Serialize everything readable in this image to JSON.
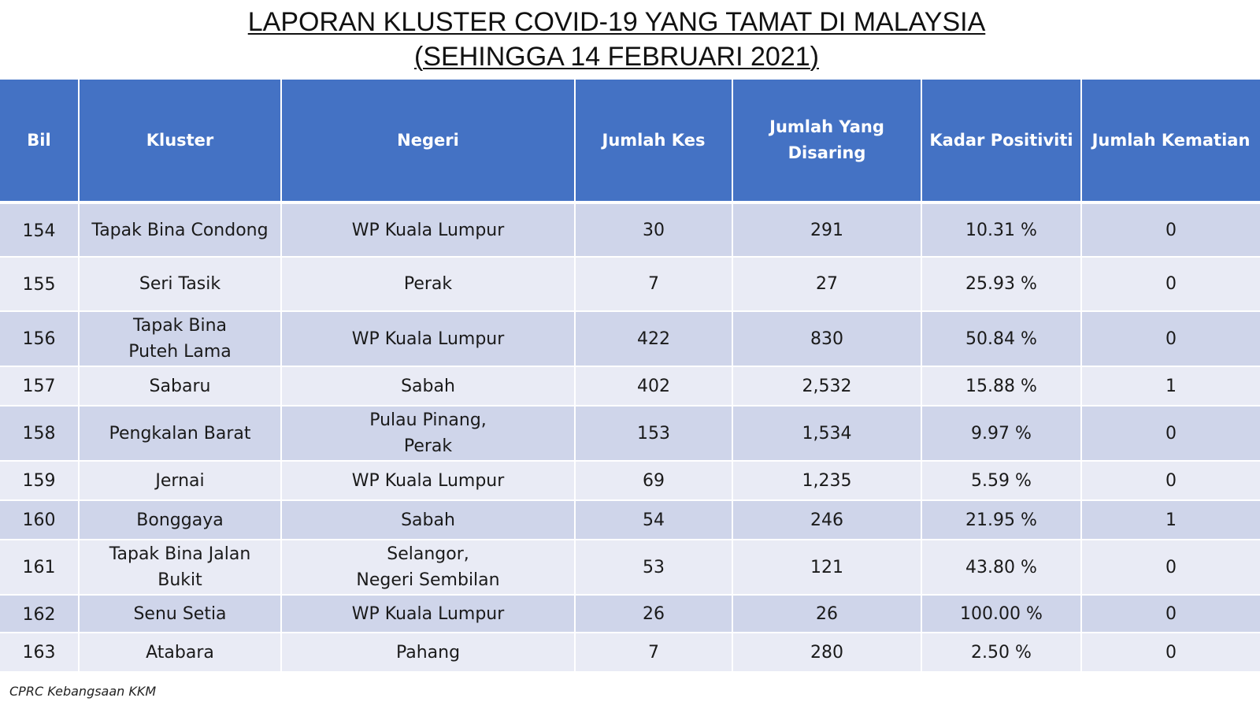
{
  "title": {
    "line1": "LAPORAN KLUSTER COVID-19 YANG TAMAT DI MALAYSIA",
    "line2": "(SEHINGGA  14 FEBRUARI 2021)"
  },
  "table": {
    "headers": {
      "bil": "Bil",
      "kluster": "Kluster",
      "negeri": "Negeri",
      "jumlah_kes": "Jumlah Kes",
      "jumlah_disaring": "Jumlah Yang\nDisaring",
      "kadar_positiviti": "Kadar Positiviti",
      "jumlah_kematian": "Jumlah Kematian"
    },
    "rows": [
      {
        "bil": "154",
        "kluster": "Tapak Bina Condong",
        "negeri": "WP Kuala Lumpur",
        "jumlah_kes": "30",
        "jumlah_disaring": "291",
        "kadar_positiviti": "10.31 %",
        "jumlah_kematian": "0"
      },
      {
        "bil": "155",
        "kluster": "Seri Tasik",
        "negeri": "Perak",
        "jumlah_kes": "7",
        "jumlah_disaring": "27",
        "kadar_positiviti": "25.93 %",
        "jumlah_kematian": "0"
      },
      {
        "bil": "156",
        "kluster": "Tapak Bina\nPuteh Lama",
        "negeri": "WP Kuala Lumpur",
        "jumlah_kes": "422",
        "jumlah_disaring": "830",
        "kadar_positiviti": "50.84 %",
        "jumlah_kematian": "0"
      },
      {
        "bil": "157",
        "kluster": "Sabaru",
        "negeri": "Sabah",
        "jumlah_kes": "402",
        "jumlah_disaring": "2,532",
        "kadar_positiviti": "15.88 %",
        "jumlah_kematian": "1"
      },
      {
        "bil": "158",
        "kluster": "Pengkalan Barat",
        "negeri": "Pulau Pinang,\nPerak",
        "jumlah_kes": "153",
        "jumlah_disaring": "1,534",
        "kadar_positiviti": "9.97 %",
        "jumlah_kematian": "0"
      },
      {
        "bil": "159",
        "kluster": "Jernai",
        "negeri": "WP Kuala Lumpur",
        "jumlah_kes": "69",
        "jumlah_disaring": "1,235",
        "kadar_positiviti": "5.59 %",
        "jumlah_kematian": "0"
      },
      {
        "bil": "160",
        "kluster": "Bonggaya",
        "negeri": "Sabah",
        "jumlah_kes": "54",
        "jumlah_disaring": "246",
        "kadar_positiviti": "21.95 %",
        "jumlah_kematian": "1"
      },
      {
        "bil": "161",
        "kluster": "Tapak Bina Jalan\nBukit",
        "negeri": "Selangor,\nNegeri Sembilan",
        "jumlah_kes": "53",
        "jumlah_disaring": "121",
        "kadar_positiviti": "43.80 %",
        "jumlah_kematian": "0"
      },
      {
        "bil": "162",
        "kluster": "Senu Setia",
        "negeri": "WP Kuala Lumpur",
        "jumlah_kes": "26",
        "jumlah_disaring": "26",
        "kadar_positiviti": "100.00 %",
        "jumlah_kematian": "0"
      },
      {
        "bil": "163",
        "kluster": "Atabara",
        "negeri": "Pahang",
        "jumlah_kes": "7",
        "jumlah_disaring": "280",
        "kadar_positiviti": "2.50 %",
        "jumlah_kematian": "0"
      }
    ]
  },
  "source": "CPRC Kebangsaan KKM",
  "colors": {
    "header_bg": "#4472c4",
    "header_text": "#ffffff",
    "row_band_dark": "#cfd5ea",
    "row_band_light": "#e9ebf5"
  }
}
